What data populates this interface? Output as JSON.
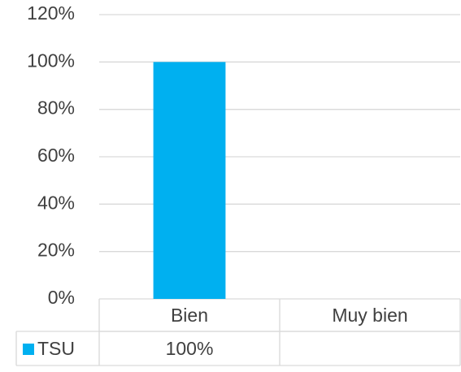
{
  "chart_data": {
    "type": "bar",
    "categories": [
      "Bien",
      "Muy bien"
    ],
    "series": [
      {
        "name": "TSU",
        "color": "#00b0f0",
        "values": [
          100,
          null
        ],
        "value_labels": [
          "100%",
          null
        ]
      }
    ],
    "ylim": [
      0,
      120
    ],
    "yticks": [
      {
        "value": 0,
        "label": "0%"
      },
      {
        "value": 20,
        "label": "20%"
      },
      {
        "value": 40,
        "label": "40%"
      },
      {
        "value": 60,
        "label": "60%"
      },
      {
        "value": 80,
        "label": "80%"
      },
      {
        "value": 100,
        "label": "100%"
      },
      {
        "value": 120,
        "label": "120%"
      }
    ],
    "grid": true,
    "data_table": true
  }
}
